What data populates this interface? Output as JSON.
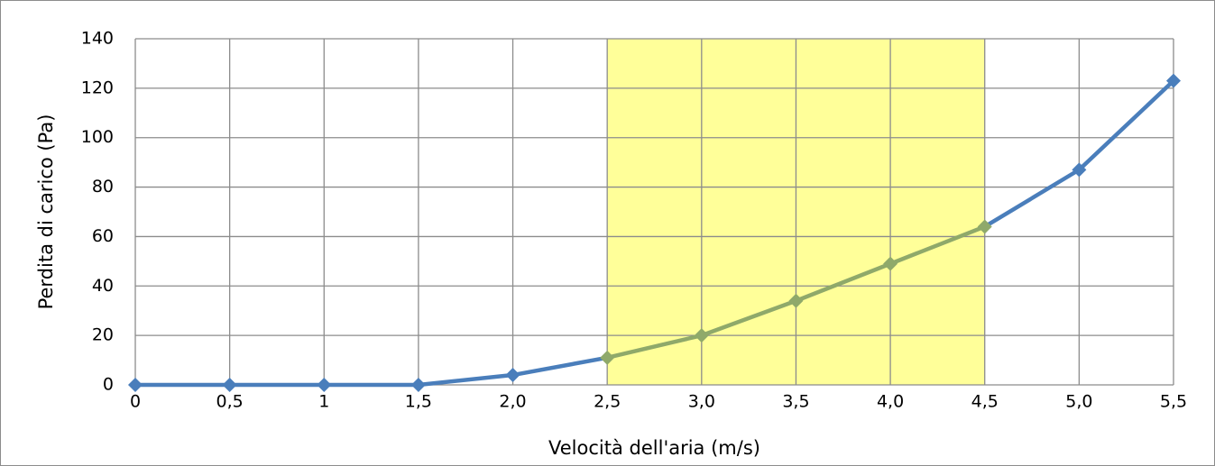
{
  "chart_data": {
    "type": "line",
    "title": "",
    "xlabel": "Velocità dell'aria (m/s)",
    "ylabel": "Perdita di carico (Pa)",
    "x_tick_labels": [
      "0",
      "0,5",
      "1",
      "1,5",
      "2,0",
      "2,5",
      "3,0",
      "3,5",
      "4,0",
      "4,5",
      "5,0",
      "5,5"
    ],
    "y_ticks": [
      0,
      20,
      40,
      60,
      80,
      100,
      120,
      140
    ],
    "xlim": [
      0,
      5.5
    ],
    "ylim": [
      0,
      140
    ],
    "grid": true,
    "legend": "none",
    "highlight_band": {
      "x_from": 2.5,
      "x_to": 4.5,
      "color": "#ffff99"
    },
    "series": [
      {
        "color": "#4a7ebb",
        "highlight_color": "#8fa96a",
        "marker": "diamond",
        "x": [
          0,
          0.5,
          1,
          1.5,
          2.0,
          2.5,
          3.0,
          3.5,
          4.0,
          4.5,
          5.0,
          5.5
        ],
        "values": [
          0,
          0,
          0,
          0,
          4,
          11,
          20,
          34,
          49,
          64,
          87,
          123
        ]
      }
    ]
  }
}
